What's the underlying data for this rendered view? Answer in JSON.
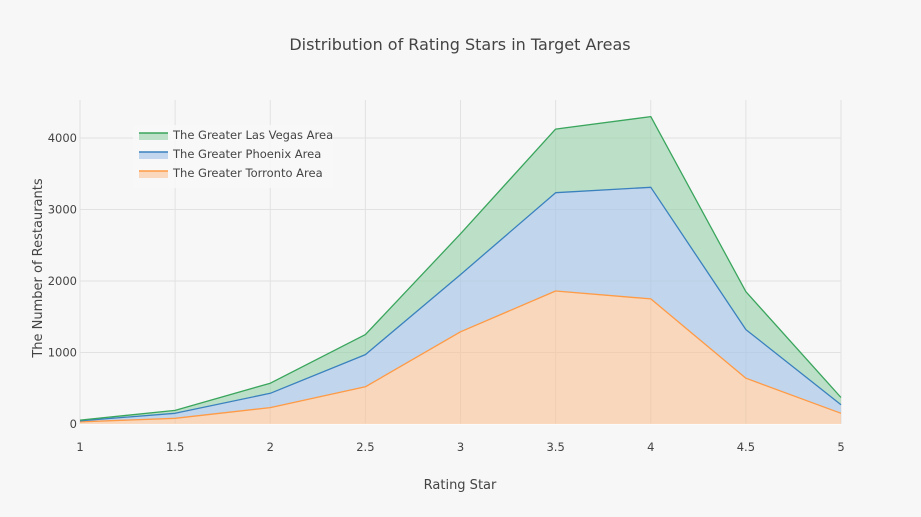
{
  "chart_data": {
    "type": "area",
    "title": "Distribution of Rating Stars in Target Areas",
    "xlabel": "Rating Star",
    "ylabel": "The Number of Restaurants",
    "x": [
      1,
      1.5,
      2,
      2.5,
      3,
      3.5,
      4,
      4.5,
      5
    ],
    "xticks": [
      "1",
      "1.5",
      "2",
      "2.5",
      "3",
      "3.5",
      "4",
      "4.5",
      "5"
    ],
    "yticks": [
      "0",
      "1000",
      "2000",
      "3000",
      "4000"
    ],
    "xlim": [
      1,
      5
    ],
    "ylim": [
      0,
      4500
    ],
    "stacked": true,
    "grid": true,
    "legend_position": "top-left",
    "series": [
      {
        "name": "The Greater Torronto Area",
        "color": "#ff9a45",
        "fill": "rgba(250,190,140,0.55)",
        "values": [
          30,
          80,
          230,
          520,
          1290,
          1860,
          1750,
          640,
          150
        ]
      },
      {
        "name": "The Greater Phoenix Area",
        "color": "#3a81be",
        "fill": "rgba(165,195,230,0.65)",
        "values": [
          15,
          70,
          200,
          450,
          800,
          1375,
          1560,
          680,
          120
        ]
      },
      {
        "name": "The Greater Las Vegas Area",
        "color": "#3aa55d",
        "fill": "rgba(140,205,160,0.55)",
        "values": [
          10,
          40,
          140,
          280,
          570,
          890,
          990,
          530,
          100
        ]
      }
    ]
  }
}
